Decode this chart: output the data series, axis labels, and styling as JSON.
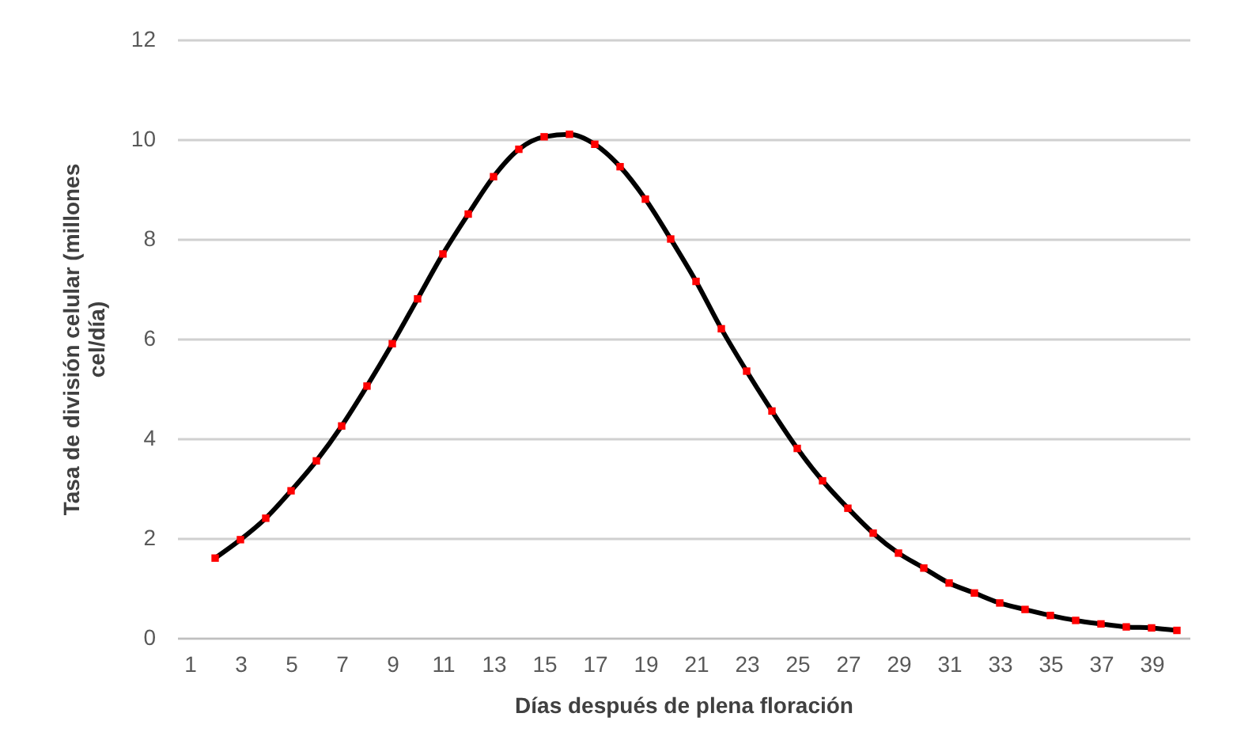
{
  "chart_data": {
    "type": "line",
    "xlabel": "Días después de plena floración",
    "ylabel": "Tasa de división celular (millones cel/día)",
    "x": [
      2,
      3,
      4,
      5,
      6,
      7,
      8,
      9,
      10,
      11,
      12,
      13,
      14,
      15,
      16,
      17,
      18,
      19,
      20,
      21,
      22,
      23,
      24,
      25,
      26,
      27,
      28,
      29,
      30,
      31,
      32,
      33,
      34,
      35,
      36,
      37,
      38,
      39,
      40
    ],
    "series": [
      {
        "color": "#000000",
        "marker": "none",
        "values": [
          1.6,
          1.97,
          2.4,
          2.95,
          3.55,
          4.25,
          5.05,
          5.9,
          6.8,
          7.7,
          8.5,
          9.25,
          9.8,
          10.05,
          10.1,
          9.9,
          9.45,
          8.8,
          8.0,
          7.15,
          6.2,
          5.35,
          4.55,
          3.8,
          3.15,
          2.6,
          2.1,
          1.7,
          1.4,
          1.1,
          0.9,
          0.7,
          0.57,
          0.45,
          0.35,
          0.28,
          0.22,
          0.2,
          0.15
        ]
      },
      {
        "type": "scatter",
        "color": "#ff0000",
        "marker": "square",
        "values": [
          1.6,
          1.97,
          2.4,
          2.95,
          3.55,
          4.25,
          5.05,
          5.9,
          6.8,
          7.7,
          8.5,
          9.25,
          9.8,
          10.05,
          10.1,
          9.9,
          9.45,
          8.8,
          8.0,
          7.15,
          6.2,
          5.35,
          4.55,
          3.8,
          3.15,
          2.6,
          2.1,
          1.7,
          1.4,
          1.1,
          0.9,
          0.7,
          0.57,
          0.45,
          0.35,
          0.28,
          0.22,
          0.2,
          0.15
        ]
      }
    ],
    "xlim": [
      0.5,
      40.5
    ],
    "xticks": [
      1,
      3,
      5,
      7,
      9,
      11,
      13,
      15,
      17,
      19,
      21,
      23,
      25,
      27,
      29,
      31,
      33,
      35,
      37,
      39
    ],
    "ylim": [
      0,
      12
    ],
    "yticks": [
      0,
      2,
      4,
      6,
      8,
      10,
      12
    ],
    "grid": "y"
  }
}
